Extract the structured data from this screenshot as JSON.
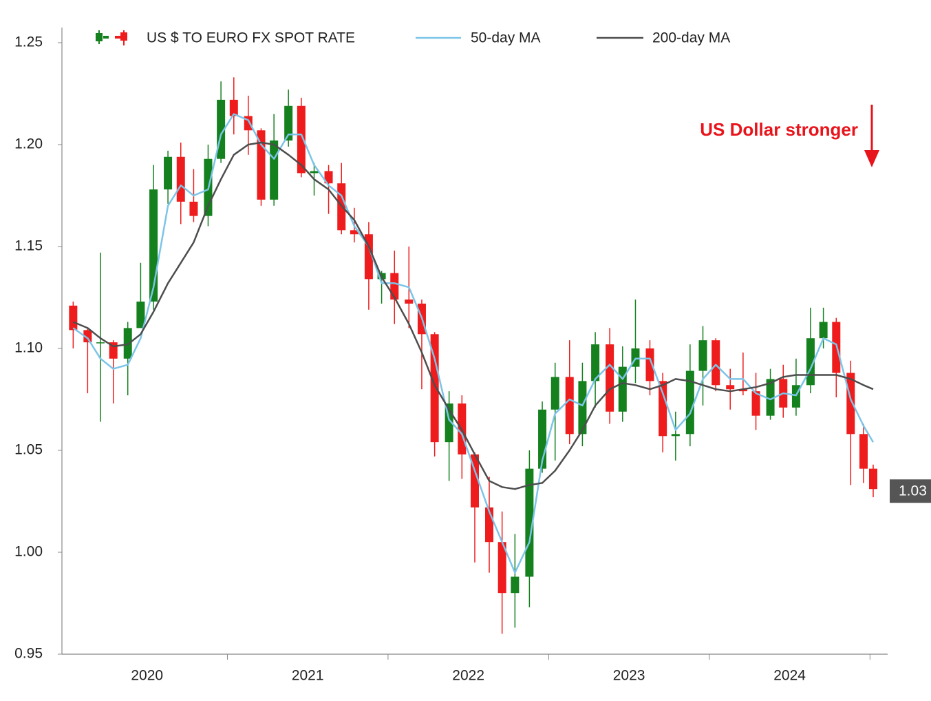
{
  "chart_data": {
    "type": "candlestick",
    "annotation": "US Dollar stronger",
    "annotation_color": "#e8141b",
    "last_value": 1.03,
    "x": [
      2020.04,
      2020.13,
      2020.21,
      2020.29,
      2020.38,
      2020.46,
      2020.54,
      2020.63,
      2020.71,
      2020.79,
      2020.88,
      2020.96,
      2021.04,
      2021.13,
      2021.21,
      2021.29,
      2021.38,
      2021.46,
      2021.54,
      2021.63,
      2021.71,
      2021.79,
      2021.88,
      2021.96,
      2022.04,
      2022.13,
      2022.21,
      2022.29,
      2022.38,
      2022.46,
      2022.54,
      2022.63,
      2022.71,
      2022.79,
      2022.88,
      2022.96,
      2023.04,
      2023.13,
      2023.21,
      2023.29,
      2023.38,
      2023.46,
      2023.54,
      2023.63,
      2023.71,
      2023.79,
      2023.88,
      2023.96,
      2024.04,
      2024.13,
      2024.21,
      2024.29,
      2024.38,
      2024.46,
      2024.54,
      2024.63,
      2024.71,
      2024.79,
      2024.88,
      2024.96,
      2025.02
    ],
    "xlim": [
      2019.97,
      2025.11
    ],
    "xticks": [
      {
        "value": 2020.5,
        "label": "2020"
      },
      {
        "value": 2021.5,
        "label": "2021"
      },
      {
        "value": 2022.5,
        "label": "2022"
      },
      {
        "value": 2023.5,
        "label": "2023"
      },
      {
        "value": 2024.5,
        "label": "2024"
      }
    ],
    "ylim": [
      0.95,
      1.25
    ],
    "yticks": [
      0.95,
      {
        "value": 1,
        "label": "1.00"
      },
      1.05,
      {
        "value": 1.1,
        "label": "1.10"
      },
      1.15,
      {
        "value": 1.2,
        "label": "1.20"
      },
      1.25
    ],
    "series": [
      {
        "name": "US $ TO EURO FX SPOT RATE",
        "kind": "candlestick",
        "up_color": "#14801e",
        "down_color": "#ee1c1c",
        "values": [
          [
            1.121,
            1.123,
            1.1,
            1.109
          ],
          [
            1.109,
            1.11,
            1.078,
            1.103
          ],
          [
            1.103,
            1.147,
            1.064,
            1.103
          ],
          [
            1.103,
            1.104,
            1.073,
            1.095
          ],
          [
            1.095,
            1.113,
            1.077,
            1.11
          ],
          [
            1.11,
            1.142,
            1.11,
            1.123
          ],
          [
            1.123,
            1.19,
            1.119,
            1.178
          ],
          [
            1.178,
            1.197,
            1.171,
            1.194
          ],
          [
            1.194,
            1.201,
            1.161,
            1.172
          ],
          [
            1.172,
            1.188,
            1.162,
            1.165
          ],
          [
            1.165,
            1.2,
            1.16,
            1.193
          ],
          [
            1.193,
            1.231,
            1.191,
            1.222
          ],
          [
            1.222,
            1.233,
            1.205,
            1.214
          ],
          [
            1.214,
            1.224,
            1.195,
            1.207
          ],
          [
            1.207,
            1.208,
            1.17,
            1.173
          ],
          [
            1.173,
            1.215,
            1.17,
            1.202
          ],
          [
            1.202,
            1.227,
            1.199,
            1.219
          ],
          [
            1.219,
            1.223,
            1.184,
            1.186
          ],
          [
            1.186,
            1.191,
            1.175,
            1.187
          ],
          [
            1.187,
            1.19,
            1.166,
            1.181
          ],
          [
            1.181,
            1.191,
            1.156,
            1.158
          ],
          [
            1.158,
            1.169,
            1.152,
            1.156
          ],
          [
            1.156,
            1.162,
            1.119,
            1.134
          ],
          [
            1.134,
            1.138,
            1.122,
            1.137
          ],
          [
            1.137,
            1.148,
            1.112,
            1.124
          ],
          [
            1.124,
            1.15,
            1.11,
            1.122
          ],
          [
            1.122,
            1.124,
            1.08,
            1.107
          ],
          [
            1.107,
            1.108,
            1.047,
            1.054
          ],
          [
            1.054,
            1.079,
            1.035,
            1.073
          ],
          [
            1.073,
            1.077,
            1.036,
            1.048
          ],
          [
            1.048,
            1.049,
            0.995,
            1.022
          ],
          [
            1.022,
            1.037,
            0.99,
            1.005
          ],
          [
            1.005,
            1.02,
            0.96,
            0.98
          ],
          [
            0.98,
            1.009,
            0.963,
            0.988
          ],
          [
            0.988,
            1.05,
            0.973,
            1.041
          ],
          [
            1.041,
            1.074,
            1.039,
            1.07
          ],
          [
            1.07,
            1.093,
            1.045,
            1.086
          ],
          [
            1.086,
            1.104,
            1.053,
            1.058
          ],
          [
            1.058,
            1.093,
            1.052,
            1.084
          ],
          [
            1.084,
            1.108,
            1.071,
            1.102
          ],
          [
            1.102,
            1.11,
            1.063,
            1.069
          ],
          [
            1.069,
            1.101,
            1.064,
            1.091
          ],
          [
            1.091,
            1.124,
            1.083,
            1.1
          ],
          [
            1.1,
            1.104,
            1.077,
            1.084
          ],
          [
            1.084,
            1.088,
            1.049,
            1.057
          ],
          [
            1.057,
            1.069,
            1.045,
            1.058
          ],
          [
            1.058,
            1.102,
            1.052,
            1.089
          ],
          [
            1.089,
            1.111,
            1.072,
            1.104
          ],
          [
            1.104,
            1.105,
            1.079,
            1.082
          ],
          [
            1.082,
            1.09,
            1.07,
            1.08
          ],
          [
            1.08,
            1.098,
            1.077,
            1.079
          ],
          [
            1.079,
            1.088,
            1.06,
            1.067
          ],
          [
            1.067,
            1.09,
            1.065,
            1.085
          ],
          [
            1.085,
            1.092,
            1.066,
            1.071
          ],
          [
            1.071,
            1.095,
            1.067,
            1.082
          ],
          [
            1.082,
            1.12,
            1.078,
            1.105
          ],
          [
            1.105,
            1.12,
            1.1,
            1.113
          ],
          [
            1.113,
            1.115,
            1.076,
            1.088
          ],
          [
            1.088,
            1.094,
            1.033,
            1.058
          ],
          [
            1.058,
            1.063,
            1.034,
            1.041
          ],
          [
            1.041,
            1.043,
            1.027,
            1.031
          ]
        ]
      },
      {
        "name": "50-day MA",
        "kind": "line",
        "color": "#7cc4e8",
        "values": [
          1.11,
          1.105,
          1.095,
          1.09,
          1.092,
          1.105,
          1.13,
          1.17,
          1.18,
          1.175,
          1.178,
          1.205,
          1.215,
          1.212,
          1.2,
          1.193,
          1.205,
          1.205,
          1.19,
          1.18,
          1.175,
          1.16,
          1.15,
          1.132,
          1.132,
          1.13,
          1.115,
          1.095,
          1.065,
          1.058,
          1.04,
          1.02,
          1.005,
          0.99,
          1.005,
          1.045,
          1.068,
          1.075,
          1.072,
          1.085,
          1.092,
          1.085,
          1.095,
          1.095,
          1.078,
          1.06,
          1.068,
          1.085,
          1.092,
          1.085,
          1.085,
          1.078,
          1.075,
          1.078,
          1.077,
          1.09,
          1.105,
          1.102,
          1.075,
          1.062,
          1.054
        ]
      },
      {
        "name": "200-day MA",
        "kind": "line",
        "color": "#4d4d4d",
        "values": [
          1.113,
          1.11,
          1.105,
          1.101,
          1.102,
          1.107,
          1.118,
          1.132,
          1.142,
          1.152,
          1.17,
          1.183,
          1.195,
          1.2,
          1.201,
          1.2,
          1.195,
          1.19,
          1.183,
          1.178,
          1.17,
          1.163,
          1.15,
          1.135,
          1.125,
          1.112,
          1.098,
          1.082,
          1.07,
          1.06,
          1.048,
          1.035,
          1.032,
          1.031,
          1.033,
          1.034,
          1.04,
          1.05,
          1.06,
          1.072,
          1.08,
          1.083,
          1.082,
          1.08,
          1.082,
          1.085,
          1.084,
          1.082,
          1.08,
          1.079,
          1.08,
          1.081,
          1.083,
          1.086,
          1.087,
          1.087,
          1.087,
          1.087,
          1.085,
          1.082,
          1.08
        ]
      }
    ]
  }
}
